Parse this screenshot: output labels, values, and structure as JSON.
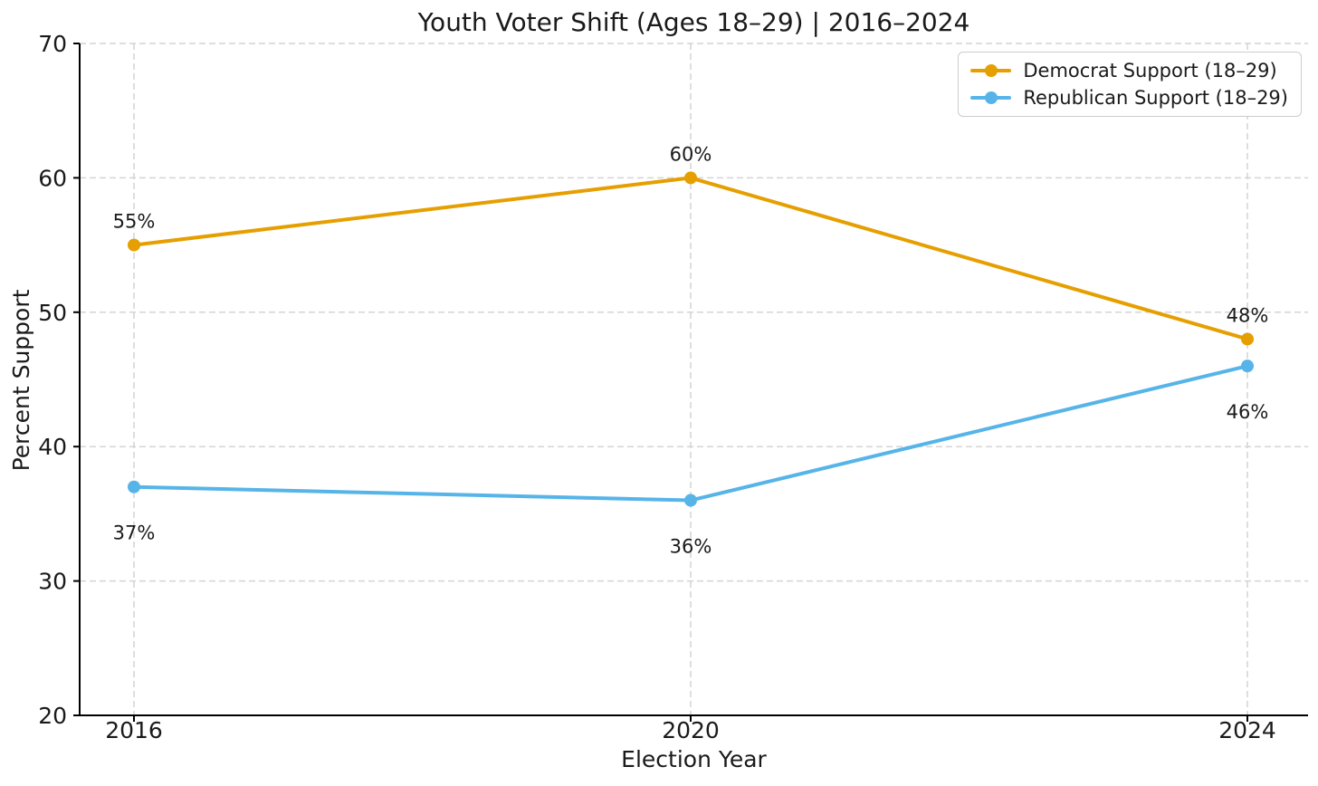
{
  "chart_data": {
    "type": "line",
    "title": "Youth Voter Shift (Ages 18–29) | 2016–2024",
    "xlabel": "Election Year",
    "ylabel": "Percent Support",
    "x": [
      "2016",
      "2020",
      "2024"
    ],
    "ylim": [
      20,
      70
    ],
    "yticks": [
      20,
      30,
      40,
      50,
      60,
      70
    ],
    "grid": true,
    "grid_style": "dashed",
    "legend_position": "upper right",
    "series": [
      {
        "name": "Democrat Support (18–29)",
        "values": [
          55,
          60,
          48
        ],
        "point_labels": [
          "55%",
          "60%",
          "48%"
        ],
        "label_placement": "above",
        "color": "#E69F00"
      },
      {
        "name": "Republican Support (18–29)",
        "values": [
          37,
          36,
          46
        ],
        "point_labels": [
          "37%",
          "36%",
          "46%"
        ],
        "label_placement": "below",
        "color": "#56B4E9"
      }
    ],
    "colors": {
      "text": "#1a1a1a",
      "axis": "#000000",
      "grid": "#d4d4d4",
      "legend_border": "#cccccc",
      "background": "#ffffff"
    }
  }
}
